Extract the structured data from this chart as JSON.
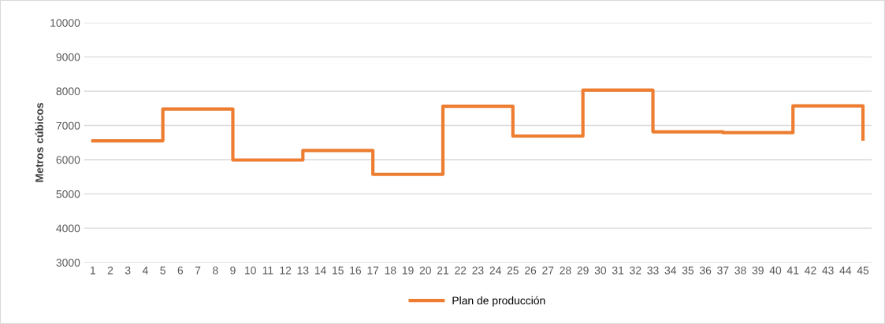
{
  "chart_data": {
    "type": "step",
    "ylabel": "Metros cúbicos",
    "categories": [
      "1",
      "2",
      "3",
      "4",
      "5",
      "6",
      "7",
      "8",
      "9",
      "10",
      "11",
      "12",
      "13",
      "14",
      "15",
      "16",
      "17",
      "18",
      "19",
      "20",
      "21",
      "22",
      "23",
      "24",
      "25",
      "26",
      "27",
      "28",
      "29",
      "30",
      "31",
      "32",
      "33",
      "34",
      "35",
      "36",
      "37",
      "38",
      "39",
      "40",
      "41",
      "42",
      "43",
      "44",
      "45"
    ],
    "series": [
      {
        "name": "Plan de producción",
        "color": "#ed7d31",
        "values": [
          6550,
          6550,
          6550,
          6550,
          7480,
          7480,
          7480,
          7480,
          5990,
          5990,
          5990,
          5990,
          6270,
          6270,
          6270,
          6270,
          5570,
          5570,
          5570,
          5570,
          7560,
          7560,
          7560,
          7560,
          6690,
          6690,
          6690,
          6690,
          8030,
          8030,
          8030,
          8030,
          6815,
          6815,
          6815,
          6815,
          6790,
          6790,
          6790,
          6790,
          7570,
          7570,
          7570,
          7570,
          6600
        ]
      }
    ],
    "ylim": [
      3000,
      10000
    ],
    "yticks": [
      3000,
      4000,
      5000,
      6000,
      7000,
      8000,
      9000,
      10000
    ],
    "grid": "y",
    "legend": "bottom",
    "marker": "none",
    "line_style": "solid"
  }
}
